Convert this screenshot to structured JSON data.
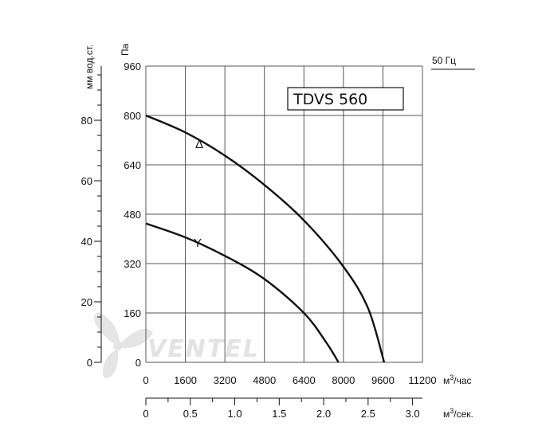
{
  "chart_data": {
    "type": "line",
    "title": "TDVS 560",
    "frequency_label": "50 Гц",
    "watermark": "VENTEL",
    "x_primary": {
      "label_html": "м³/час",
      "label": "м³/час",
      "ticks": [
        0,
        1600,
        3200,
        4800,
        6400,
        8000,
        9600,
        11200
      ],
      "range": [
        0,
        11200
      ]
    },
    "x_secondary": {
      "label": "м³/сек.",
      "ticks": [
        "0",
        "0.5",
        "1.0",
        "1.5",
        "2.0",
        "2.5",
        "3.0"
      ],
      "tick_values": [
        0,
        0.5,
        1.0,
        1.5,
        2.0,
        2.5,
        3.0
      ],
      "range": [
        0,
        3.111
      ]
    },
    "y_primary": {
      "label": "Па",
      "ticks": [
        0,
        160,
        320,
        480,
        640,
        800,
        960
      ],
      "range": [
        0,
        960
      ]
    },
    "y_secondary": {
      "label": "мм вод.ст.",
      "ticks": [
        0,
        20,
        40,
        60,
        80
      ],
      "range": [
        0,
        97.9
      ]
    },
    "grid": true,
    "series": [
      {
        "name": "Δ",
        "points": [
          [
            0,
            800
          ],
          [
            1600,
            745
          ],
          [
            3200,
            670
          ],
          [
            4800,
            575
          ],
          [
            6400,
            460
          ],
          [
            8000,
            310
          ],
          [
            9000,
            175
          ],
          [
            9650,
            0
          ]
        ]
      },
      {
        "name": "Y",
        "points": [
          [
            0,
            450
          ],
          [
            1600,
            405
          ],
          [
            3200,
            345
          ],
          [
            4800,
            270
          ],
          [
            6400,
            160
          ],
          [
            7300,
            65
          ],
          [
            7800,
            0
          ]
        ]
      }
    ]
  }
}
